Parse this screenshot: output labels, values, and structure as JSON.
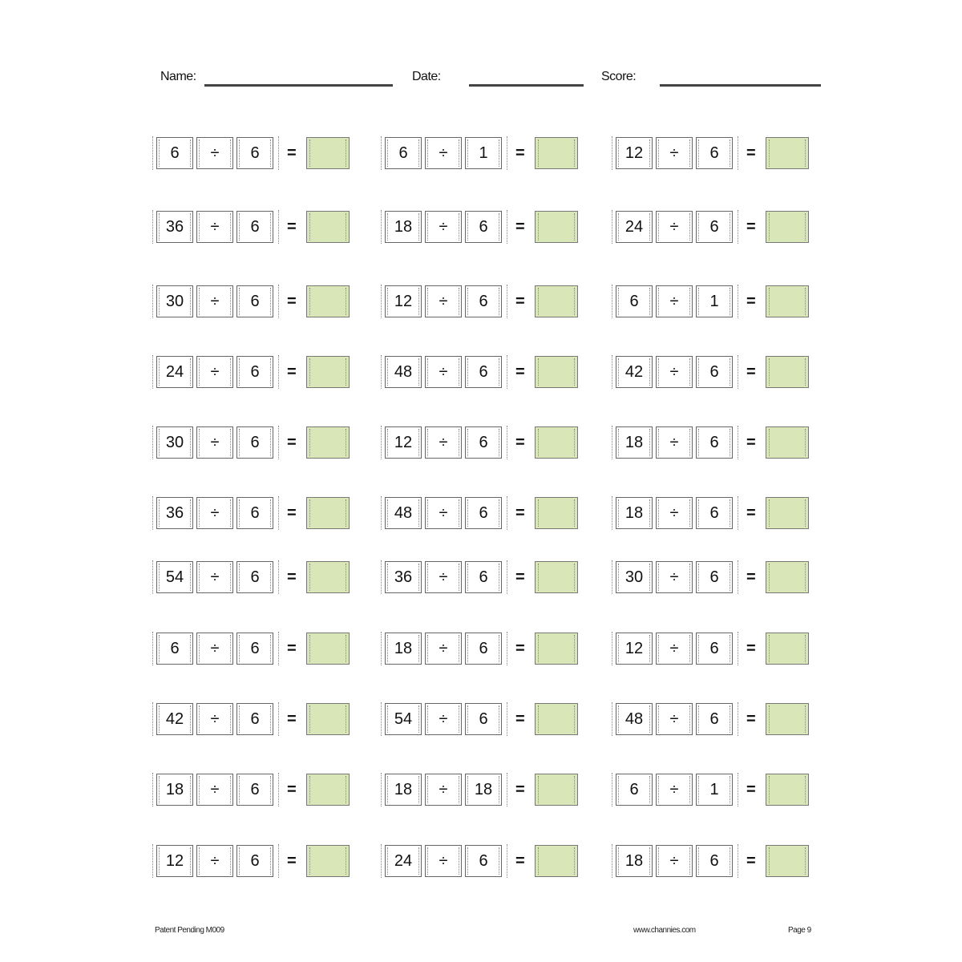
{
  "header": {
    "name_label": "Name:",
    "date_label": "Date:",
    "score_label": "Score:"
  },
  "operator": "÷",
  "equals": "=",
  "answer_color": "#d8e6b8",
  "rows": [
    [
      [
        "6",
        "6"
      ],
      [
        "6",
        "1"
      ],
      [
        "12",
        "6"
      ]
    ],
    [
      [
        "36",
        "6"
      ],
      [
        "18",
        "6"
      ],
      [
        "24",
        "6"
      ]
    ],
    [
      [
        "30",
        "6"
      ],
      [
        "12",
        "6"
      ],
      [
        "6",
        "1"
      ]
    ],
    [
      [
        "24",
        "6"
      ],
      [
        "48",
        "6"
      ],
      [
        "42",
        "6"
      ]
    ],
    [
      [
        "30",
        "6"
      ],
      [
        "12",
        "6"
      ],
      [
        "18",
        "6"
      ]
    ],
    [
      [
        "36",
        "6"
      ],
      [
        "48",
        "6"
      ],
      [
        "18",
        "6"
      ]
    ],
    [
      [
        "54",
        "6"
      ],
      [
        "36",
        "6"
      ],
      [
        "30",
        "6"
      ]
    ],
    [
      [
        "6",
        "6"
      ],
      [
        "18",
        "6"
      ],
      [
        "12",
        "6"
      ]
    ],
    [
      [
        "42",
        "6"
      ],
      [
        "54",
        "6"
      ],
      [
        "48",
        "6"
      ]
    ],
    [
      [
        "18",
        "6"
      ],
      [
        "18",
        "18"
      ],
      [
        "6",
        "1"
      ]
    ],
    [
      [
        "12",
        "6"
      ],
      [
        "24",
        "6"
      ],
      [
        "18",
        "6"
      ]
    ]
  ],
  "footer": {
    "left": "Patent Pending M009",
    "center": "www.channies.com",
    "right": "Page 9"
  }
}
